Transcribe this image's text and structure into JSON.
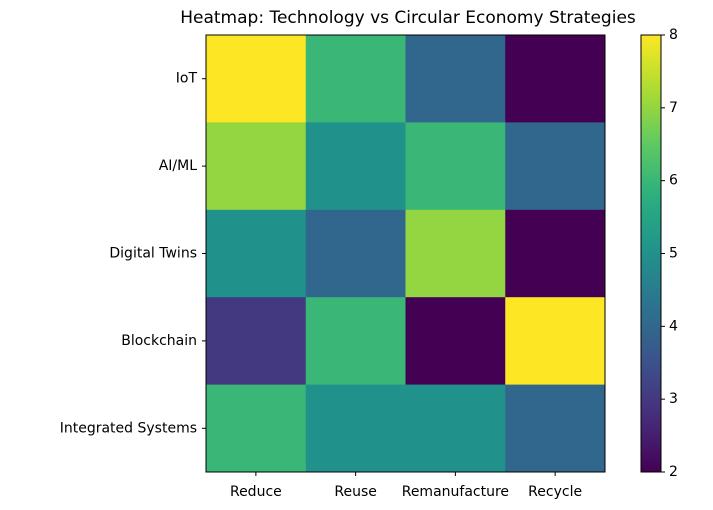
{
  "chart_data": {
    "type": "heatmap",
    "title": "Heatmap: Technology vs Circular Economy Strategies",
    "categories": [
      "Reduce",
      "Reuse",
      "Remanufacture",
      "Recycle"
    ],
    "y_categories": [
      "IoT",
      "AI/ML",
      "Digital Twins",
      "Blockchain",
      "Integrated Systems"
    ],
    "values": [
      [
        8,
        6,
        4,
        2
      ],
      [
        7,
        5,
        6,
        4
      ],
      [
        5,
        4,
        7,
        2
      ],
      [
        3,
        6,
        2,
        8
      ],
      [
        6,
        5,
        5,
        4
      ]
    ],
    "colormap": "viridis",
    "clim": [
      2,
      8
    ],
    "cticks": [
      2,
      3,
      4,
      5,
      6,
      7,
      8
    ]
  }
}
